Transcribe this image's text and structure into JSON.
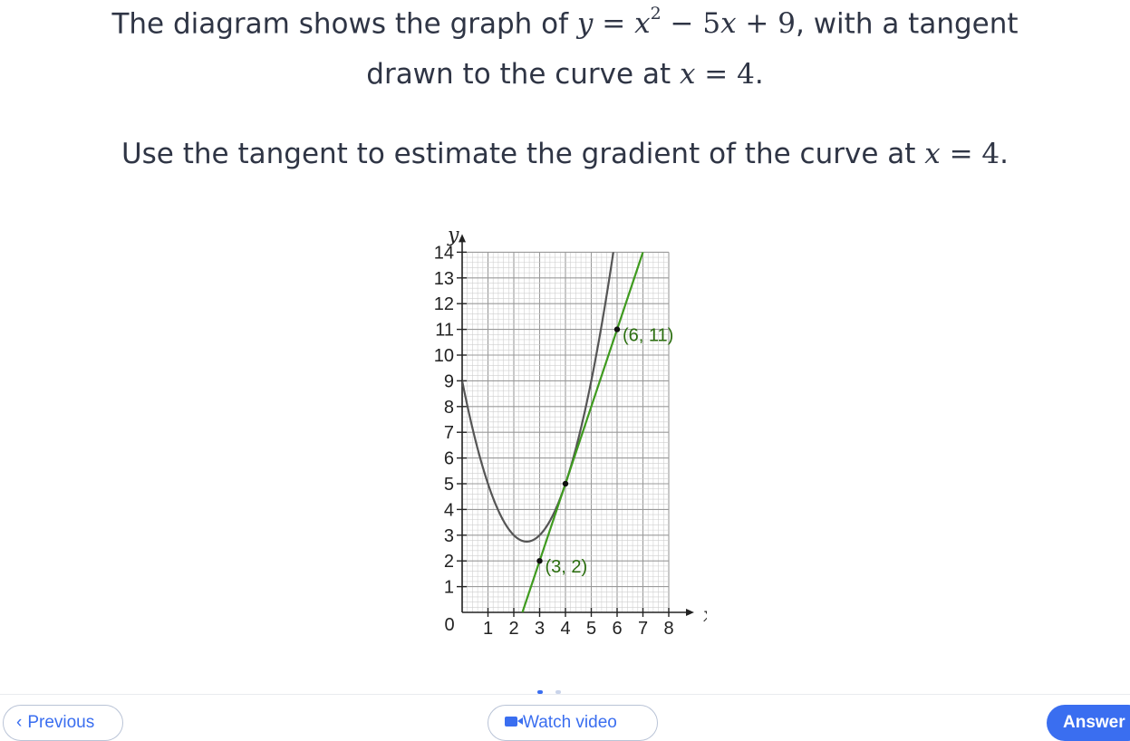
{
  "question": {
    "line1_text": "The diagram shows the graph of ",
    "line1_math_y": "y",
    "line1_math_eq": " = ",
    "line1_math_x": "x",
    "line1_math_exp": "2",
    "line1_math_rest": " − 5",
    "line1_math_x2": "x",
    "line1_math_end": " + 9",
    "line1_tail": ", with a tangent",
    "line2_text": "drawn to the curve at ",
    "line2_math_x": "x",
    "line2_math_val": " = 4",
    "line2_tail": ".",
    "line3_text": "Use the tangent to estimate the gradient of the curve at ",
    "line3_math_x": "x",
    "line3_math_val": " = 4",
    "line3_tail": "."
  },
  "chart_data": {
    "type": "line",
    "xlabel": "x",
    "ylabel": "y",
    "origin_label": "0",
    "xlim": [
      0,
      8
    ],
    "ylim": [
      0,
      14
    ],
    "x_ticks": [
      1,
      2,
      3,
      4,
      5,
      6,
      7,
      8
    ],
    "y_ticks": [
      1,
      2,
      3,
      4,
      5,
      6,
      7,
      8,
      9,
      10,
      11,
      12,
      13,
      14
    ],
    "grid": true,
    "series": [
      {
        "kind": "curve",
        "expression": "x^2 - 5x + 9",
        "color": "#555555"
      },
      {
        "kind": "tangent",
        "slope": 3,
        "intercept": -7,
        "color": "#3f9b1f"
      }
    ],
    "points": [
      {
        "x": 4,
        "y": 5,
        "label": ""
      },
      {
        "x": 3,
        "y": 2,
        "label": "(3, 2)"
      },
      {
        "x": 6,
        "y": 11,
        "label": "(6, 11)"
      }
    ],
    "label_color": "#2b6e0f"
  },
  "footer": {
    "previous_label": "Previous",
    "video_label": "Watch video",
    "answer_label": "Answer",
    "accent_color": "#3a6ef0",
    "previous_icon": "chevron-left-icon",
    "video_icon": "video-camera-icon"
  }
}
